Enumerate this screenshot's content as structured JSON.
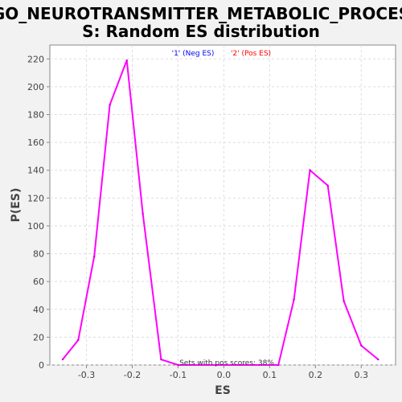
{
  "chart_data": {
    "type": "line",
    "title": "GO_NEUROTRANSMITTER_METABOLIC_PROCESS: Random ES distribution",
    "title_lines": [
      "GO_NEUROTRANSMITTER_METABOLIC_PROCES",
      "S: Random ES distribution"
    ],
    "xlabel": "ES",
    "ylabel": "P(ES)",
    "xlim": [
      -0.38,
      0.375
    ],
    "ylim": [
      0,
      230
    ],
    "x_ticks": [
      -0.3,
      -0.2,
      -0.1,
      0.0,
      0.1,
      0.2,
      0.3
    ],
    "x_tick_labels": [
      "-0.3",
      "-0.2",
      "-0.1",
      "0.0",
      "0.1",
      "0.2",
      "0.3"
    ],
    "y_ticks": [
      0,
      20,
      40,
      60,
      80,
      100,
      120,
      140,
      160,
      180,
      200,
      220
    ],
    "y_tick_labels": [
      "0",
      "20",
      "40",
      "60",
      "80",
      "100",
      "120",
      "140",
      "160",
      "180",
      "200",
      "220"
    ],
    "grid": true,
    "legend": {
      "placement": "top-center",
      "items": [
        {
          "label": "'1' (Neg ES)",
          "color": "#0000ff"
        },
        {
          "label": "'2' (Pos ES)",
          "color": "#ff0000"
        }
      ]
    },
    "annotation": "Sets with pos scores: 38%",
    "series": [
      {
        "color": "#ff00ff",
        "x": [
          -0.352,
          -0.318,
          -0.283,
          -0.249,
          -0.212,
          -0.177,
          -0.137,
          -0.1,
          0.119,
          0.153,
          0.188,
          0.227,
          0.262,
          0.3,
          0.337
        ],
        "y": [
          4,
          18,
          78,
          187,
          219,
          109,
          4,
          0,
          0,
          47,
          140,
          129,
          46,
          14,
          4
        ]
      }
    ]
  }
}
